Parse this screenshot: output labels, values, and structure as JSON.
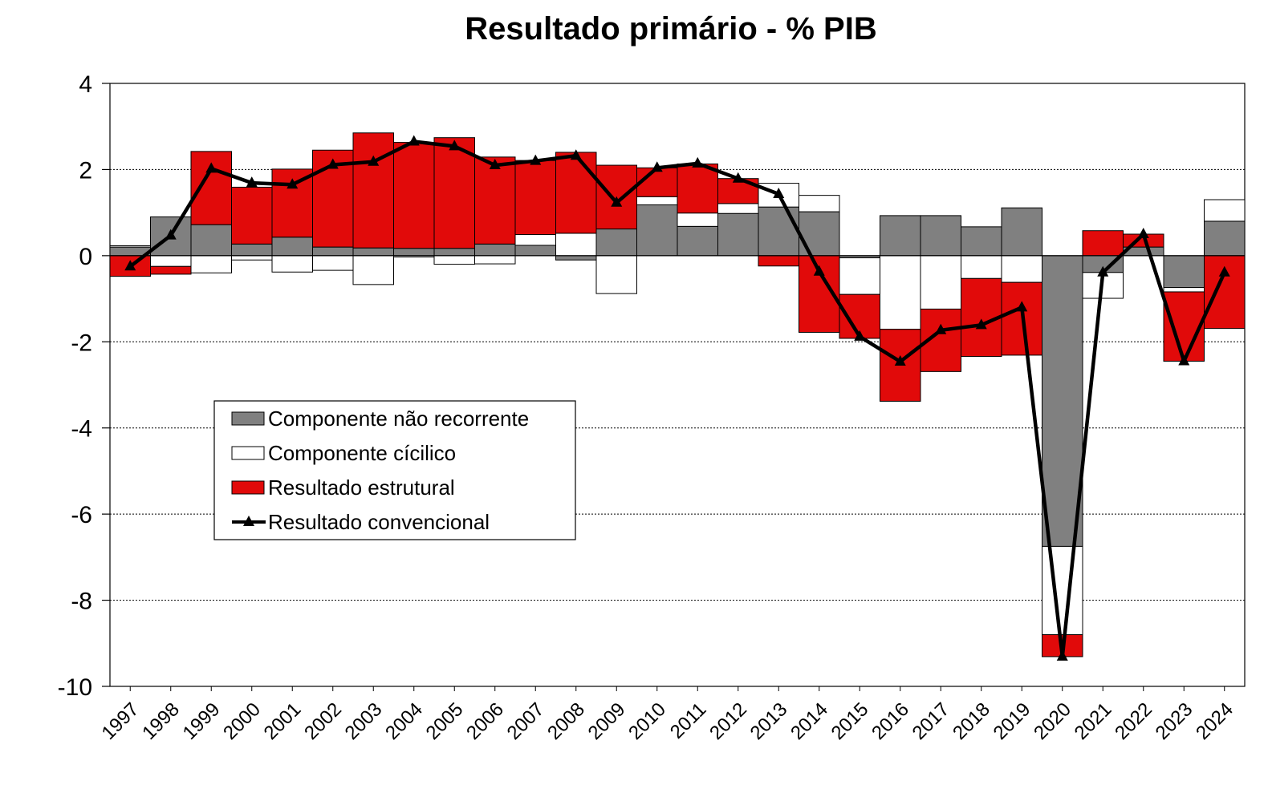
{
  "chart_data": {
    "type": "bar",
    "title": "Resultado primário - % PIB",
    "xlabel": "",
    "ylabel": "",
    "ylim": [
      -10,
      4
    ],
    "yticks": [
      4,
      2,
      0,
      -2,
      -4,
      -6,
      -8,
      -10
    ],
    "grid": true,
    "legend_placement": "center-left",
    "categories": [
      "1997",
      "1998",
      "1999",
      "2000",
      "2001",
      "2002",
      "2003",
      "2004",
      "2005",
      "2006",
      "2007",
      "2008",
      "2009",
      "2010",
      "2011",
      "2012",
      "2013",
      "2014",
      "2015",
      "2016",
      "2017",
      "2018",
      "2019",
      "2020",
      "2021",
      "2022",
      "2023",
      "2024"
    ],
    "series": [
      {
        "name": "Componente não recorrente",
        "kind": "bar",
        "color": "#808080",
        "values": [
          0.2,
          0.9,
          0.72,
          0.27,
          0.43,
          0.2,
          0.18,
          0.17,
          0.17,
          0.27,
          0.24,
          -0.1,
          0.62,
          1.18,
          0.68,
          0.98,
          1.13,
          1.02,
          -0.05,
          0.93,
          0.93,
          0.67,
          1.11,
          -6.75,
          -0.39,
          0.2,
          -0.74,
          0.8
        ]
      },
      {
        "name": "Componente cícilico",
        "kind": "bar",
        "color": "#ffffff",
        "values": [
          0.03,
          -0.25,
          -0.4,
          -0.1,
          -0.38,
          -0.34,
          -0.67,
          -0.03,
          -0.2,
          -0.19,
          0.25,
          0.52,
          -0.88,
          0.19,
          0.31,
          0.23,
          0.55,
          0.38,
          -0.85,
          -1.71,
          -1.24,
          -0.53,
          -0.62,
          -2.05,
          -0.6,
          0.0,
          -0.1,
          0.5
        ]
      },
      {
        "name": "Resultado estrutural",
        "kind": "bar",
        "color": "#e10a0a",
        "values": [
          -0.48,
          -0.18,
          1.7,
          1.32,
          1.58,
          2.25,
          2.67,
          2.46,
          2.57,
          2.02,
          1.72,
          1.88,
          1.48,
          0.67,
          1.14,
          0.58,
          -0.24,
          -1.78,
          -1.02,
          -1.67,
          -1.45,
          -1.81,
          -1.69,
          -0.51,
          0.58,
          0.3,
          -1.61,
          -1.69
        ]
      },
      {
        "name": "Resultado convencional",
        "kind": "line",
        "color": "#000000",
        "marker": "triangle",
        "values": [
          -0.25,
          0.47,
          2.02,
          1.69,
          1.65,
          2.11,
          2.18,
          2.65,
          2.54,
          2.1,
          2.2,
          2.32,
          1.23,
          2.04,
          2.14,
          1.79,
          1.43,
          -0.37,
          -1.88,
          -2.46,
          -1.73,
          -1.61,
          -1.2,
          -9.31,
          -0.39,
          0.5,
          -2.45,
          -0.39
        ]
      }
    ]
  }
}
